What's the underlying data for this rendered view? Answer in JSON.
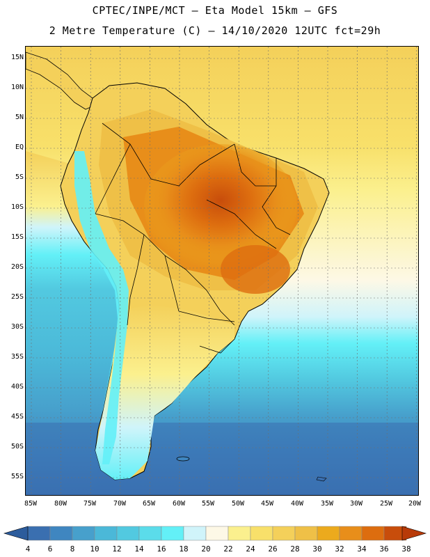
{
  "header": {
    "title_line1": "CPTEC/INPE/MCT –  Eta Model 15km – GFS",
    "title_line2": "2 Metre Temperature (C) – 14/10/2020 12UTC fct=29h"
  },
  "map": {
    "lat_labels": [
      "15N",
      "10N",
      "5N",
      "EQ",
      "5S",
      "10S",
      "15S",
      "20S",
      "25S",
      "30S",
      "35S",
      "40S",
      "45S",
      "50S",
      "55S"
    ],
    "lon_labels": [
      "85W",
      "80W",
      "75W",
      "70W",
      "65W",
      "60W",
      "55W",
      "50W",
      "45W",
      "40W",
      "35W",
      "30W",
      "25W",
      "20W"
    ]
  },
  "colorbar": {
    "values": [
      "4",
      "6",
      "8",
      "10",
      "12",
      "14",
      "16",
      "18",
      "20",
      "22",
      "24",
      "26",
      "28",
      "30",
      "32",
      "34",
      "36",
      "38"
    ],
    "colors": [
      "#3a6fb0",
      "#3f86c0",
      "#47a0cc",
      "#4bb8d8",
      "#52c9e0",
      "#5bdcea",
      "#63f0f7",
      "#d0f4fa",
      "#fdf8e6",
      "#fbf08e",
      "#f8e06a",
      "#f4d05a",
      "#efc047",
      "#ecaa1d",
      "#e88e1a",
      "#dd6d0f",
      "#c84d0b"
    ],
    "under_color": "#2c5c9c",
    "over_color": "#b83a08"
  }
}
